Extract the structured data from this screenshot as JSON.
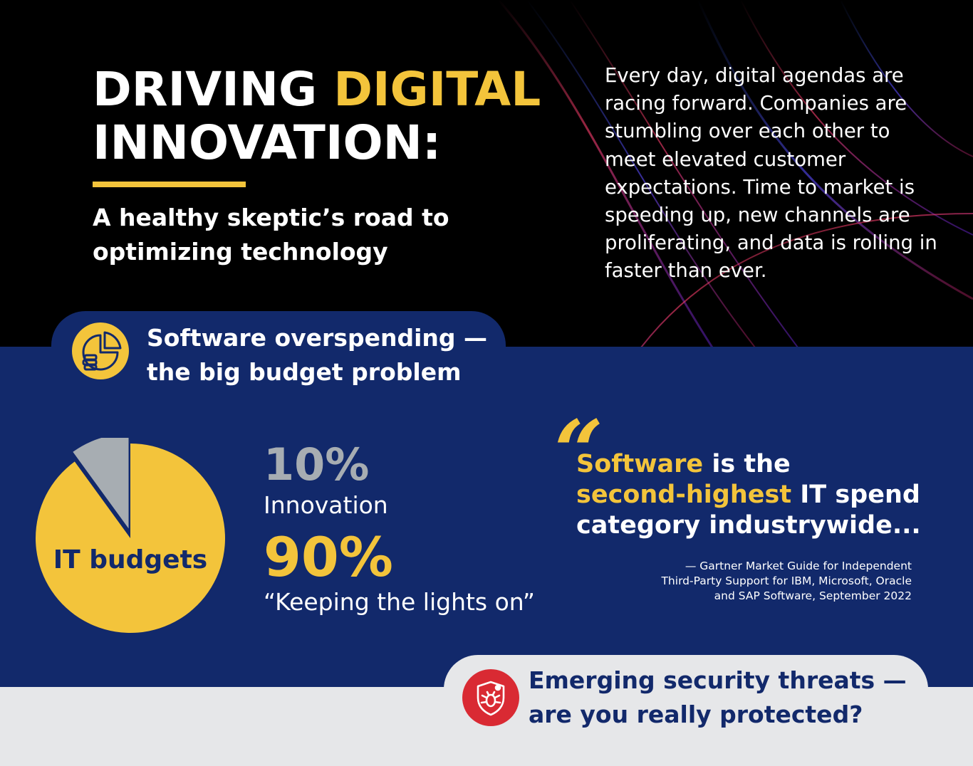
{
  "hero": {
    "title_line1_a": "DRIVING ",
    "title_line1_b": "DIGITAL",
    "title_line2": "INNOVATION:",
    "subtitle": "A healthy skeptic’s road to optimizing technology",
    "intro": "Every day, digital agendas are racing forward. Companies are stumbling over each other to meet elevated customer expectations. Time to market is speeding up, new channels are proliferating, and data is rolling in faster than ever."
  },
  "budget_section": {
    "icon": "budget-chart-icon",
    "heading_line1": "Software overspending —",
    "heading_line2": "the big budget problem",
    "pie_label": "IT budgets",
    "innovation_pct": "10%",
    "innovation_label": "Innovation",
    "lights_pct": "90%",
    "lights_label": "“Keeping the lights on”",
    "quote_mark": "“",
    "quote_a": "Software",
    "quote_b": " is the ",
    "quote_c": "second-highest",
    "quote_d": " IT spend category industrywide...",
    "source_line1": "—  Gartner Market Guide for Independent",
    "source_line2": "Third-Party Support for IBM, Microsoft, Oracle",
    "source_line3": "and SAP Software, September 2022"
  },
  "security_section": {
    "icon": "shield-bug-icon",
    "heading_line1": "Emerging security threats —",
    "heading_line2": "are you really protected?"
  },
  "chart_data": {
    "type": "pie",
    "title": "",
    "categories": [
      "Innovation",
      "Keeping the lights on"
    ],
    "values": [
      10,
      90
    ],
    "colors": [
      "#a7adb2",
      "#f3c43b"
    ]
  },
  "colors": {
    "navy": "#12296b",
    "gold": "#f3c43b",
    "gray": "#a7adb2",
    "red": "#d92a33",
    "light": "#e6e7e9"
  }
}
